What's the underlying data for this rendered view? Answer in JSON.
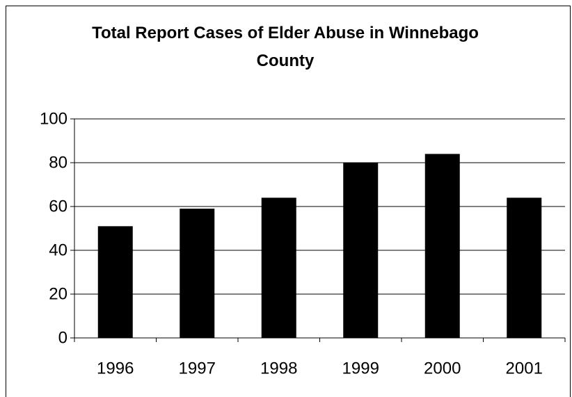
{
  "chart_data": {
    "type": "bar",
    "title": "Total Report Cases of Elder Abuse in Winnebago County",
    "categories": [
      "1996",
      "1997",
      "1998",
      "1999",
      "2000",
      "2001"
    ],
    "values": [
      51,
      59,
      64,
      80,
      84,
      64
    ],
    "color": "#000000",
    "ylim": [
      0,
      100
    ],
    "yticks": [
      0,
      20,
      40,
      60,
      80,
      100
    ],
    "grid": true
  }
}
